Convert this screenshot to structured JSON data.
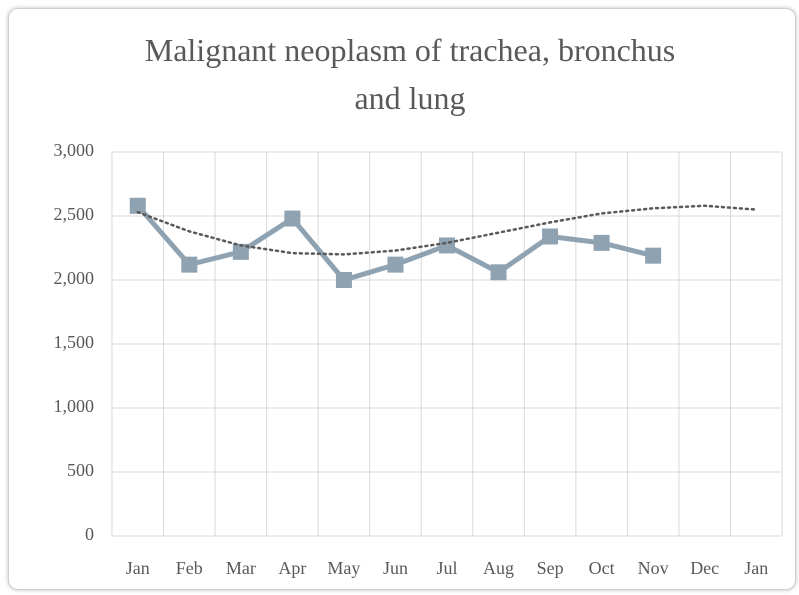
{
  "chart_data": {
    "type": "line",
    "title": "Malignant neoplasm of trachea, bronchus and lung",
    "categories": [
      "Jan",
      "Feb",
      "Mar",
      "Apr",
      "May",
      "Jun",
      "Jul",
      "Aug",
      "Sep",
      "Oct",
      "Nov",
      "Dec",
      "Jan"
    ],
    "series": [
      {
        "color": "#8ea2b2",
        "marker": "square",
        "values": [
          2580,
          2120,
          2220,
          2480,
          2000,
          2120,
          2270,
          2060,
          2340,
          2290,
          2190,
          null,
          null
        ]
      },
      {
        "color": "#595959",
        "dash": "dotted",
        "values": [
          2530,
          2380,
          2270,
          2210,
          2200,
          2230,
          2290,
          2370,
          2450,
          2520,
          2560,
          2580,
          2550
        ]
      }
    ],
    "ylim": [
      0,
      3000
    ],
    "yticks": [
      0,
      {
        "value": 500,
        "label": "500"
      },
      {
        "value": 1000,
        "label": "1,000"
      },
      {
        "value": 1500,
        "label": "1,500"
      },
      {
        "value": 2000,
        "label": "2,000"
      },
      {
        "value": 2500,
        "label": "2,500"
      },
      {
        "value": 3000,
        "label": "3,000"
      }
    ],
    "grid": true
  }
}
